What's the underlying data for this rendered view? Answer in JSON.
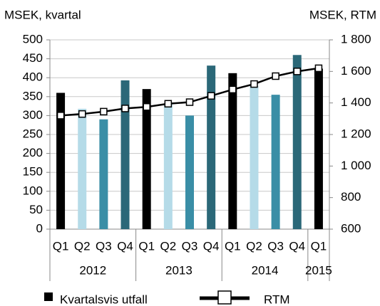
{
  "chart_data": {
    "type": "bar_line",
    "y_label": "MSEK, kvartal",
    "y2_label": "MSEK, RTM",
    "categories": [
      "Q1",
      "Q2",
      "Q3",
      "Q4",
      "Q1",
      "Q2",
      "Q3",
      "Q4",
      "Q1",
      "Q2",
      "Q3",
      "Q4",
      "Q1"
    ],
    "groups": [
      {
        "name": "2012",
        "count": 4
      },
      {
        "name": "2013",
        "count": 4
      },
      {
        "name": "2014",
        "count": 4
      },
      {
        "name": "2015",
        "count": 1
      }
    ],
    "series": [
      {
        "name": "Kvartalsvis utfall",
        "color": "#000000",
        "colors": [
          "#000000",
          "#b5dbe8",
          "#3a8ea6",
          "#2b6878",
          "#000000",
          "#b5dbe8",
          "#3a8ea6",
          "#2b6878",
          "#000000",
          "#b5dbe8",
          "#3a8ea6",
          "#2b6878",
          "#000000"
        ],
        "values": [
          360,
          318,
          290,
          393,
          370,
          330,
          300,
          432,
          412,
          378,
          355,
          460,
          424
        ]
      },
      {
        "name": "RTM",
        "color": "#000000",
        "axis": "y2",
        "values": [
          1320,
          1330,
          1345,
          1365,
          1375,
          1395,
          1405,
          1445,
          1485,
          1520,
          1570,
          1600,
          1620
        ]
      }
    ],
    "ylim": [
      0,
      500
    ],
    "yticks": [
      0,
      50,
      100,
      150,
      200,
      250,
      300,
      350,
      400,
      450,
      500
    ],
    "y2lim": [
      600,
      1800
    ],
    "y2ticks": [
      600,
      800,
      {
        "value": 1000,
        "label": "1 000"
      },
      {
        "value": 1200,
        "label": "1 200"
      },
      {
        "value": 1400,
        "label": "1 400"
      },
      {
        "value": 1600,
        "label": "1 600"
      },
      {
        "value": 1800,
        "label": "1 800"
      }
    ],
    "grid": true
  }
}
